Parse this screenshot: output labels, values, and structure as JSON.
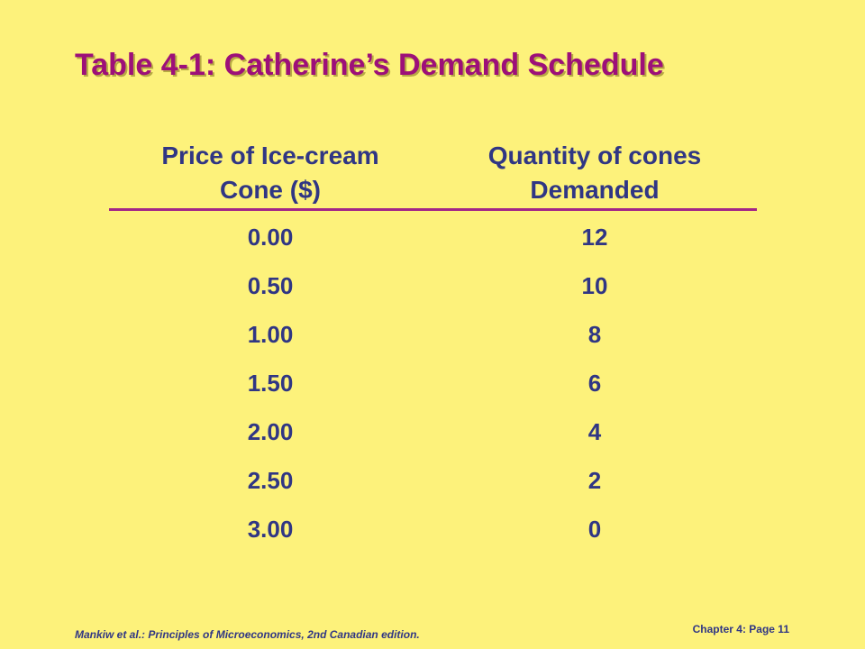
{
  "slide": {
    "title": "Table 4-1: Catherine’s Demand Schedule",
    "colors": {
      "background": "#fdf27b",
      "title": "#9d0f79",
      "text": "#303684",
      "rule": "#a22687"
    }
  },
  "table": {
    "headers": {
      "price_line1": "Price of Ice-cream",
      "price_line2": "Cone ($)",
      "quantity_line1": "Quantity of cones",
      "quantity_line2": "Demanded"
    },
    "rows": [
      {
        "price": "0.00",
        "quantity": "12"
      },
      {
        "price": "0.50",
        "quantity": "10"
      },
      {
        "price": "1.00",
        "quantity": "8"
      },
      {
        "price": "1.50",
        "quantity": "6"
      },
      {
        "price": "2.00",
        "quantity": "4"
      },
      {
        "price": "2.50",
        "quantity": "2"
      },
      {
        "price": "3.00",
        "quantity": "0"
      }
    ]
  },
  "footer": {
    "citation": "Mankiw et al.: Principles of Microeconomics, 2nd Canadian edition.",
    "page": "Chapter 4: Page 11"
  }
}
